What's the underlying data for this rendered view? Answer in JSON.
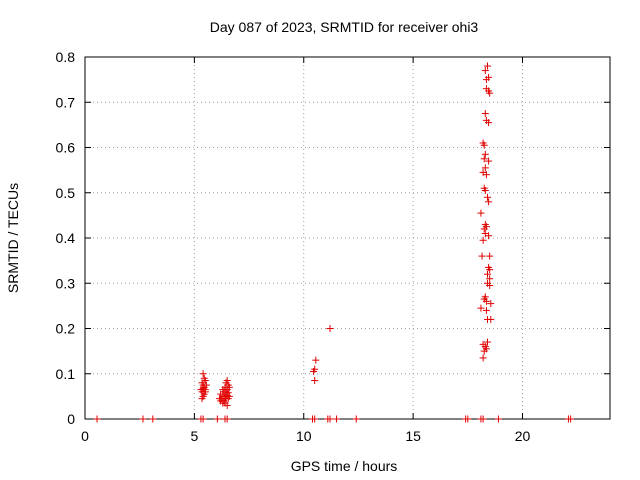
{
  "chart_data": {
    "type": "scatter",
    "title": "Day 087 of 2023, SRMTID for receiver ohi3",
    "xlabel": "GPS time / hours",
    "ylabel": "SRMTID / TECUs",
    "xlim": [
      0,
      24
    ],
    "ylim": [
      0,
      0.8
    ],
    "xticks": [
      0,
      5,
      10,
      15,
      20
    ],
    "yticks": [
      0,
      0.1,
      0.2,
      0.3,
      0.4,
      0.5,
      0.6,
      0.7,
      0.8
    ],
    "xtick_labels": [
      "0",
      "5",
      "10",
      "15",
      "20"
    ],
    "ytick_labels": [
      "0",
      "0.1",
      "0.2",
      "0.3",
      "0.4",
      "0.5",
      "0.6",
      "0.7",
      "0.8"
    ],
    "grid": true,
    "marker": "+",
    "series_color": "#e00000",
    "series": [
      {
        "name": "SRMTID",
        "points": [
          [
            0.55,
            0
          ],
          [
            2.65,
            0
          ],
          [
            3.1,
            0
          ],
          [
            5.3,
            0
          ],
          [
            5.4,
            0
          ],
          [
            6.05,
            0
          ],
          [
            6.4,
            0
          ],
          [
            6.5,
            0
          ],
          [
            10.4,
            0
          ],
          [
            10.5,
            0
          ],
          [
            11.1,
            0
          ],
          [
            11.2,
            0
          ],
          [
            11.5,
            0
          ],
          [
            12.4,
            0
          ],
          [
            17.4,
            0
          ],
          [
            17.5,
            0
          ],
          [
            18.1,
            0
          ],
          [
            18.2,
            0
          ],
          [
            18.9,
            0
          ],
          [
            22.1,
            0
          ],
          [
            22.2,
            0
          ],
          [
            5.4,
            0.1
          ],
          [
            5.45,
            0.09
          ],
          [
            5.35,
            0.08
          ],
          [
            5.5,
            0.085
          ],
          [
            5.4,
            0.075
          ],
          [
            5.45,
            0.07
          ],
          [
            5.3,
            0.065
          ],
          [
            5.5,
            0.065
          ],
          [
            5.35,
            0.06
          ],
          [
            5.45,
            0.055
          ],
          [
            5.4,
            0.05
          ],
          [
            5.55,
            0.075
          ],
          [
            5.35,
            0.045
          ],
          [
            5.5,
            0.06
          ],
          [
            5.4,
            0.068
          ],
          [
            6.5,
            0.085
          ],
          [
            6.45,
            0.08
          ],
          [
            6.55,
            0.075
          ],
          [
            6.4,
            0.07
          ],
          [
            6.5,
            0.065
          ],
          [
            6.6,
            0.07
          ],
          [
            6.3,
            0.065
          ],
          [
            6.35,
            0.06
          ],
          [
            6.45,
            0.06
          ],
          [
            6.55,
            0.058
          ],
          [
            6.2,
            0.055
          ],
          [
            6.3,
            0.05
          ],
          [
            6.4,
            0.05
          ],
          [
            6.5,
            0.052
          ],
          [
            6.15,
            0.045
          ],
          [
            6.25,
            0.045
          ],
          [
            6.35,
            0.04
          ],
          [
            6.45,
            0.045
          ],
          [
            6.55,
            0.045
          ],
          [
            6.3,
            0.035
          ],
          [
            6.4,
            0.035
          ],
          [
            6.5,
            0.03
          ],
          [
            6.2,
            0.04
          ],
          [
            6.6,
            0.05
          ],
          [
            10.55,
            0.13
          ],
          [
            10.5,
            0.11
          ],
          [
            10.45,
            0.105
          ],
          [
            10.5,
            0.085
          ],
          [
            11.2,
            0.2
          ],
          [
            18.4,
            0.78
          ],
          [
            18.3,
            0.77
          ],
          [
            18.35,
            0.75
          ],
          [
            18.45,
            0.755
          ],
          [
            18.35,
            0.73
          ],
          [
            18.45,
            0.725
          ],
          [
            18.5,
            0.72
          ],
          [
            18.3,
            0.675
          ],
          [
            18.35,
            0.66
          ],
          [
            18.45,
            0.655
          ],
          [
            18.2,
            0.61
          ],
          [
            18.25,
            0.605
          ],
          [
            18.3,
            0.585
          ],
          [
            18.25,
            0.575
          ],
          [
            18.45,
            0.57
          ],
          [
            18.3,
            0.555
          ],
          [
            18.2,
            0.545
          ],
          [
            18.35,
            0.54
          ],
          [
            18.25,
            0.51
          ],
          [
            18.3,
            0.505
          ],
          [
            18.4,
            0.49
          ],
          [
            18.45,
            0.48
          ],
          [
            18.1,
            0.455
          ],
          [
            18.3,
            0.43
          ],
          [
            18.35,
            0.425
          ],
          [
            18.25,
            0.42
          ],
          [
            18.3,
            0.41
          ],
          [
            18.45,
            0.405
          ],
          [
            18.2,
            0.395
          ],
          [
            18.15,
            0.36
          ],
          [
            18.5,
            0.36
          ],
          [
            18.45,
            0.335
          ],
          [
            18.5,
            0.33
          ],
          [
            18.4,
            0.32
          ],
          [
            18.5,
            0.31
          ],
          [
            18.4,
            0.3
          ],
          [
            18.5,
            0.295
          ],
          [
            18.3,
            0.27
          ],
          [
            18.25,
            0.265
          ],
          [
            18.35,
            0.26
          ],
          [
            18.55,
            0.255
          ],
          [
            18.1,
            0.245
          ],
          [
            18.35,
            0.24
          ],
          [
            18.4,
            0.22
          ],
          [
            18.55,
            0.22
          ],
          [
            18.4,
            0.17
          ],
          [
            18.2,
            0.165
          ],
          [
            18.3,
            0.16
          ],
          [
            18.35,
            0.155
          ],
          [
            18.25,
            0.15
          ],
          [
            18.2,
            0.135
          ]
        ]
      }
    ]
  }
}
